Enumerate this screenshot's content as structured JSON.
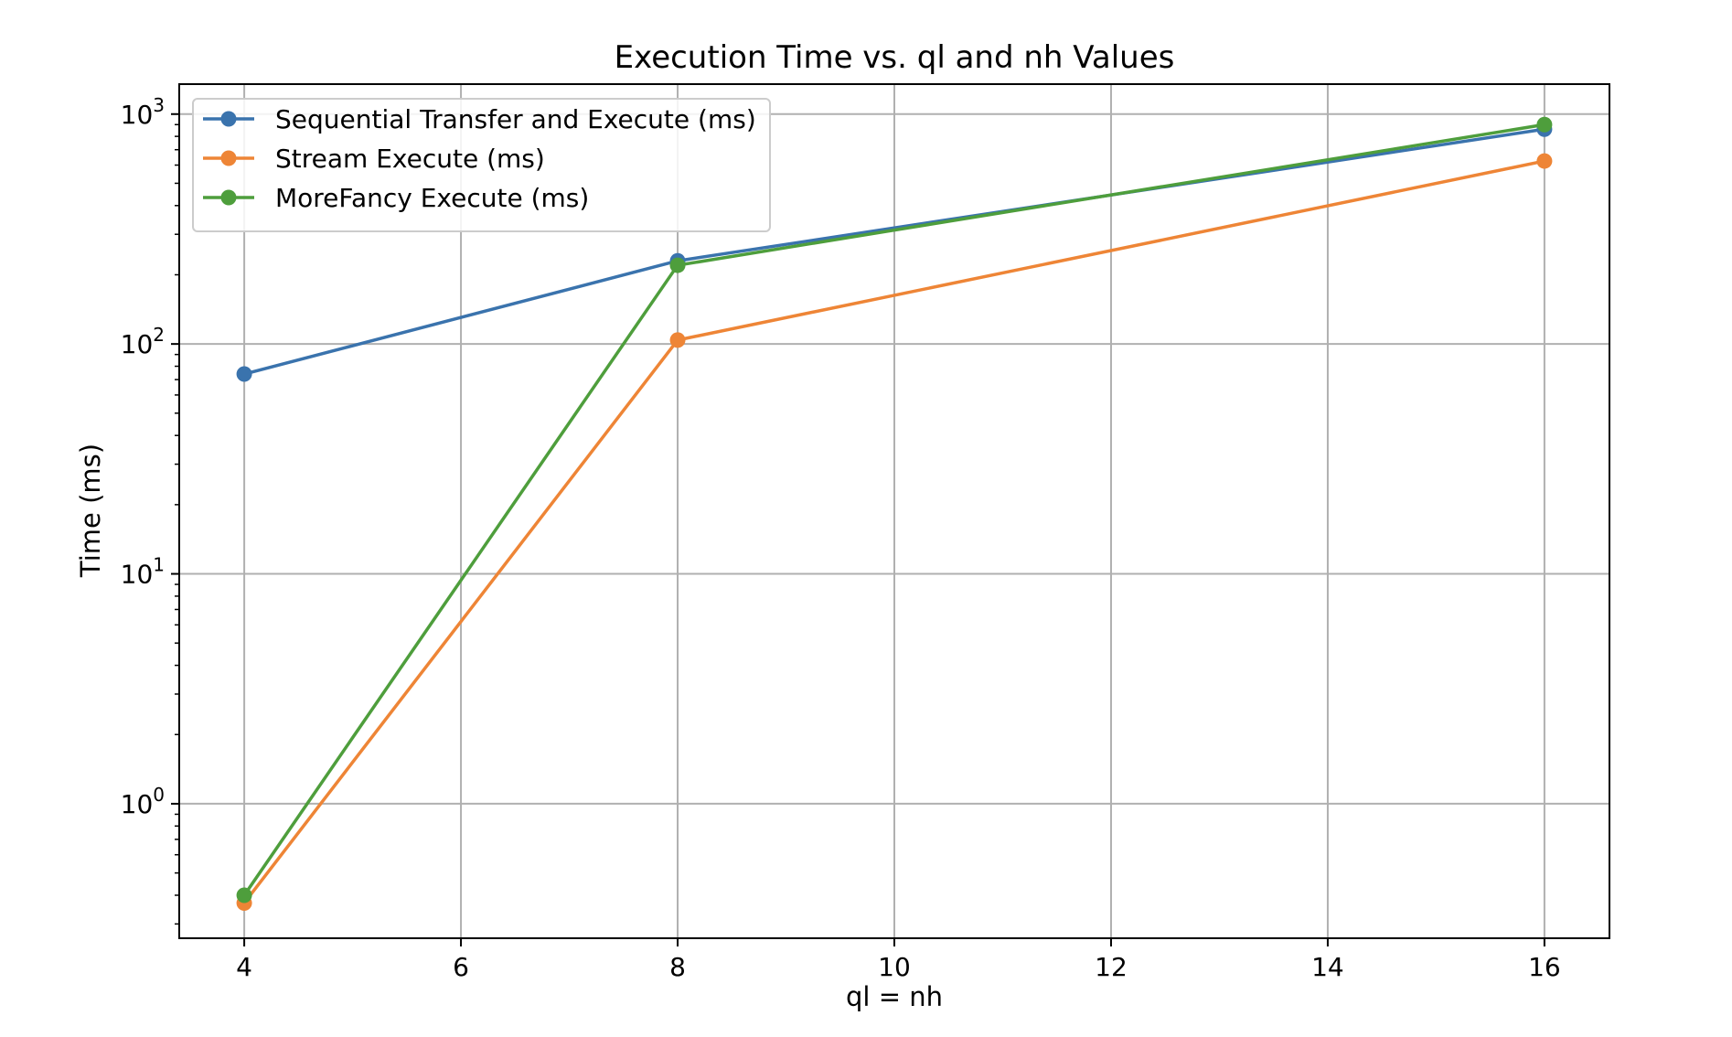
{
  "chart_data": {
    "type": "line",
    "title": "Execution Time vs. ql and nh Values",
    "xlabel": "ql = nh",
    "ylabel": "Time (ms)",
    "x": [
      4,
      8,
      16
    ],
    "xlim": [
      3.4,
      16.6
    ],
    "xticks": [
      4,
      6,
      8,
      10,
      12,
      14,
      16
    ],
    "yscale": "log",
    "ylim": [
      0.26,
      1350
    ],
    "ytick_exponents": [
      0,
      1,
      2,
      3
    ],
    "ytick_base": "10",
    "grid": true,
    "legend_position": "upper left",
    "series": [
      {
        "name": "Sequential Transfer and Execute (ms)",
        "color": "#3a73ad",
        "values": [
          74,
          230,
          860
        ]
      },
      {
        "name": "Stream Execute (ms)",
        "color": "#ee8536",
        "values": [
          0.37,
          104,
          625
        ]
      },
      {
        "name": "MoreFancy Execute (ms)",
        "color": "#4e9e3c",
        "values": [
          0.4,
          220,
          900
        ]
      }
    ]
  }
}
